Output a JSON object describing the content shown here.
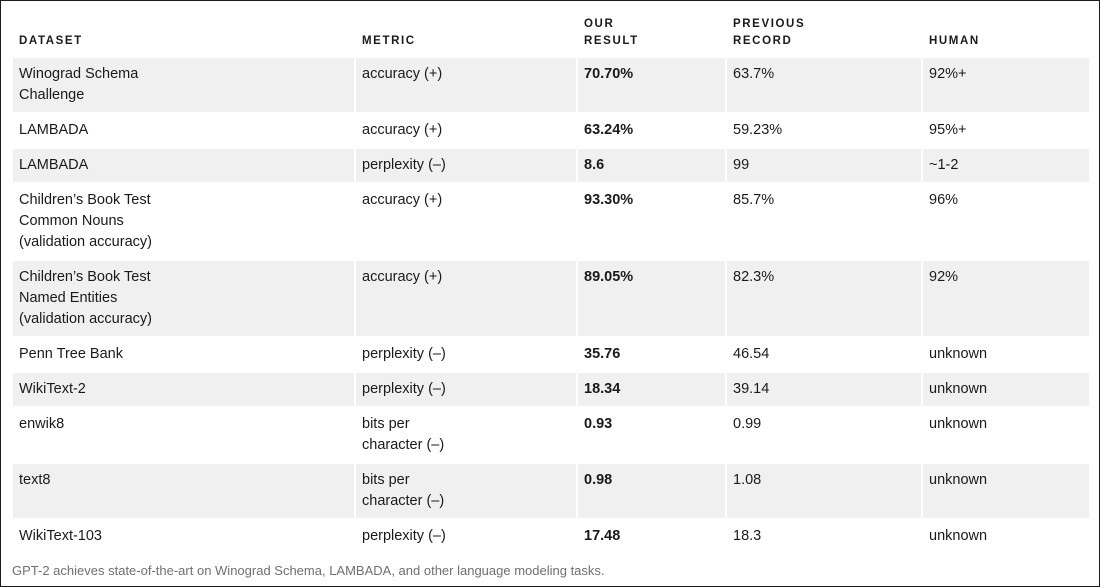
{
  "table": {
    "headers": {
      "dataset": "DATASET",
      "metric": "METRIC",
      "our_result": "OUR\nRESULT",
      "previous_record": "PREVIOUS\nRECORD",
      "human": "HUMAN"
    },
    "rows": [
      {
        "dataset": "Winograd Schema\nChallenge",
        "metric": "accuracy (+)",
        "our_result": "70.70%",
        "previous_record": "63.7%",
        "human": "92%+"
      },
      {
        "dataset": "LAMBADA",
        "metric": "accuracy (+)",
        "our_result": "63.24%",
        "previous_record": "59.23%",
        "human": "95%+"
      },
      {
        "dataset": "LAMBADA",
        "metric": "perplexity (–)",
        "our_result": "8.6",
        "previous_record": "99",
        "human": "~1-2"
      },
      {
        "dataset": "Children’s Book Test\nCommon Nouns\n(validation accuracy)",
        "metric": "accuracy (+)",
        "our_result": "93.30%",
        "previous_record": "85.7%",
        "human": "96%"
      },
      {
        "dataset": "Children’s Book Test\nNamed Entities\n(validation accuracy)",
        "metric": "accuracy (+)",
        "our_result": "89.05%",
        "previous_record": "82.3%",
        "human": "92%"
      },
      {
        "dataset": "Penn Tree Bank",
        "metric": "perplexity (–)",
        "our_result": "35.76",
        "previous_record": "46.54",
        "human": "unknown"
      },
      {
        "dataset": "WikiText-2",
        "metric": "perplexity (–)",
        "our_result": "18.34",
        "previous_record": "39.14",
        "human": "unknown"
      },
      {
        "dataset": "enwik8",
        "metric": "bits per\ncharacter (–)",
        "our_result": "0.93",
        "previous_record": "0.99",
        "human": "unknown"
      },
      {
        "dataset": "text8",
        "metric": "bits per\ncharacter (–)",
        "our_result": "0.98",
        "previous_record": "1.08",
        "human": "unknown"
      },
      {
        "dataset": "WikiText-103",
        "metric": "perplexity (–)",
        "our_result": "17.48",
        "previous_record": "18.3",
        "human": "unknown"
      }
    ]
  },
  "caption": "GPT-2 achieves state-of-the-art on Winograd Schema, LAMBADA, and other language modeling tasks.",
  "colors": {
    "row_shade": "#f0f0f0",
    "caption_text": "#707070"
  }
}
